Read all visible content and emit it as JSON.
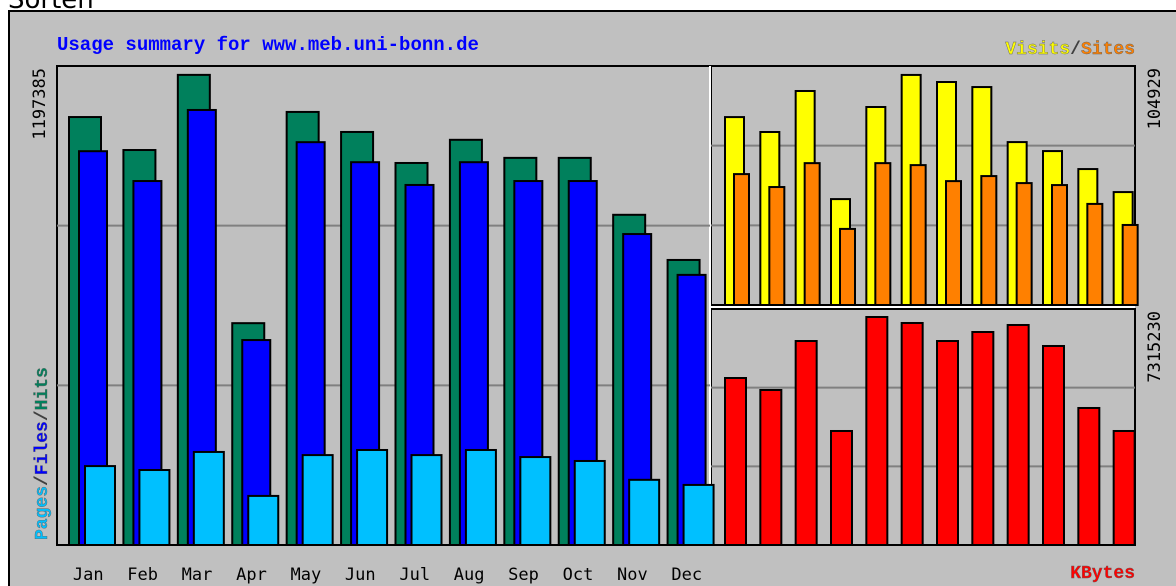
{
  "heading": "Sorten",
  "title": "Usage summary for www.meb.uni-bonn.de",
  "separator": "/",
  "chart_data": [
    {
      "type": "bar",
      "categories": [
        "Jan",
        "Feb",
        "Mar",
        "Apr",
        "May",
        "Jun",
        "Jul",
        "Aug",
        "Sep",
        "Oct",
        "Nov",
        "Dec"
      ],
      "ylim": [
        0,
        1220000
      ],
      "max_label": 1197385,
      "grid": true,
      "legend_corner": "left",
      "series": [
        {
          "name": "Hits",
          "color": "#00805c",
          "values": [
            1090000,
            1006000,
            1197385,
            565000,
            1103000,
            1052000,
            973000,
            1032000,
            986000,
            986000,
            841000,
            726000
          ]
        },
        {
          "name": "Files",
          "color": "#0000ff",
          "values": [
            1003000,
            927000,
            1108000,
            522000,
            1026000,
            975000,
            917000,
            975000,
            927000,
            927000,
            792000,
            688000
          ]
        },
        {
          "name": "Pages",
          "color": "#00c0ff",
          "values": [
            201000,
            191000,
            237000,
            125000,
            229000,
            242000,
            229000,
            242000,
            224000,
            214000,
            166000,
            153000
          ]
        }
      ]
    },
    {
      "type": "bar",
      "ylim": [
        0,
        109000
      ],
      "max_label": 104929,
      "grid": true,
      "legend_corner": "top-right",
      "series": [
        {
          "name": "Visits",
          "color": "#ffff00",
          "values": [
            85700,
            78900,
            97600,
            48300,
            90300,
            104929,
            101700,
            99400,
            74300,
            70200,
            62000,
            51500
          ]
        },
        {
          "name": "Sites",
          "color": "#ff8000",
          "values": [
            59700,
            53800,
            64700,
            34700,
            64700,
            63800,
            56500,
            58800,
            55600,
            54700,
            46100,
            36500
          ]
        }
      ]
    },
    {
      "type": "bar",
      "ylim": [
        0,
        7572000
      ],
      "max_label": 7315230,
      "grid": true,
      "legend_corner": "bottom-right",
      "series": [
        {
          "name": "KBytes",
          "color": "#ff0000",
          "values": [
            5358000,
            4973000,
            6545000,
            3658000,
            7315230,
            7123000,
            6545000,
            6834000,
            7059000,
            6385000,
            4396000,
            3658000
          ]
        }
      ]
    }
  ]
}
